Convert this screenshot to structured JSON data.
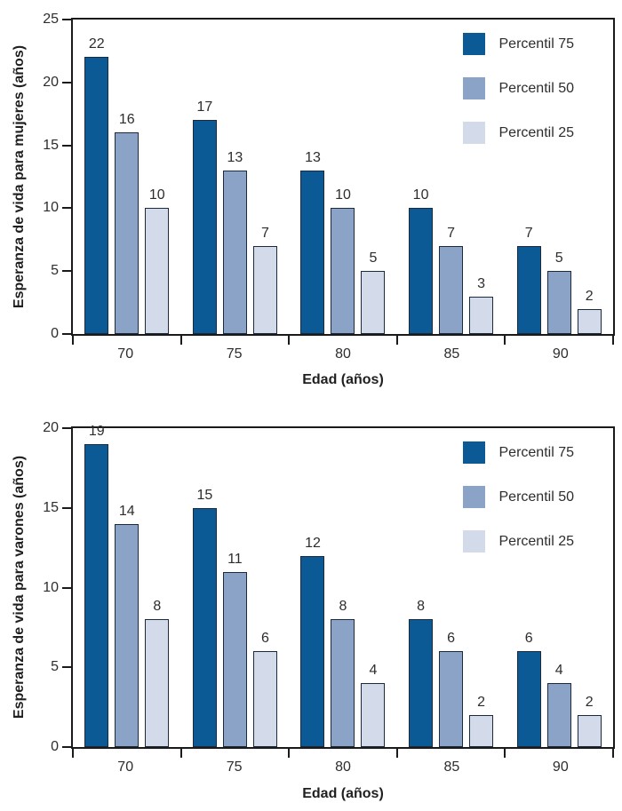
{
  "colors": {
    "series": [
      "#0b5a96",
      "#8ba3c7",
      "#d3dbea"
    ],
    "bar_outline": "#1b2a3d",
    "frame": "#1a1a1a",
    "text": "#2d2d2d"
  },
  "chart_data": [
    {
      "type": "bar",
      "title": "",
      "categories": [
        "70",
        "75",
        "80",
        "85",
        "90"
      ],
      "series": [
        {
          "name": "Percentil 75",
          "values": [
            22,
            17,
            13,
            10,
            7
          ]
        },
        {
          "name": "Percentil 50",
          "values": [
            16,
            13,
            10,
            7,
            5
          ]
        },
        {
          "name": "Percentil 25",
          "values": [
            10,
            7,
            5,
            3,
            2
          ]
        }
      ],
      "xlabel": "Edad (años)",
      "ylabel": "Esperanza de vida para mujeres (años)",
      "ylim": [
        0,
        25
      ],
      "yticks": [
        0,
        5,
        10,
        15,
        20,
        25
      ],
      "grid": false,
      "bar_labels": true,
      "legend_position": "top-right"
    },
    {
      "type": "bar",
      "title": "",
      "categories": [
        "70",
        "75",
        "80",
        "85",
        "90"
      ],
      "series": [
        {
          "name": "Percentil 75",
          "values": [
            19,
            15,
            12,
            8,
            6
          ]
        },
        {
          "name": "Percentil 50",
          "values": [
            14,
            11,
            8,
            6,
            4
          ]
        },
        {
          "name": "Percentil 25",
          "values": [
            8,
            6,
            4,
            2,
            2
          ]
        }
      ],
      "xlabel": "Edad (años)",
      "ylabel": "Esperanza de vida para varones (años)",
      "ylim": [
        0,
        20
      ],
      "yticks": [
        0,
        5,
        10,
        15,
        20
      ],
      "grid": false,
      "bar_labels": true,
      "legend_position": "top-right"
    }
  ]
}
